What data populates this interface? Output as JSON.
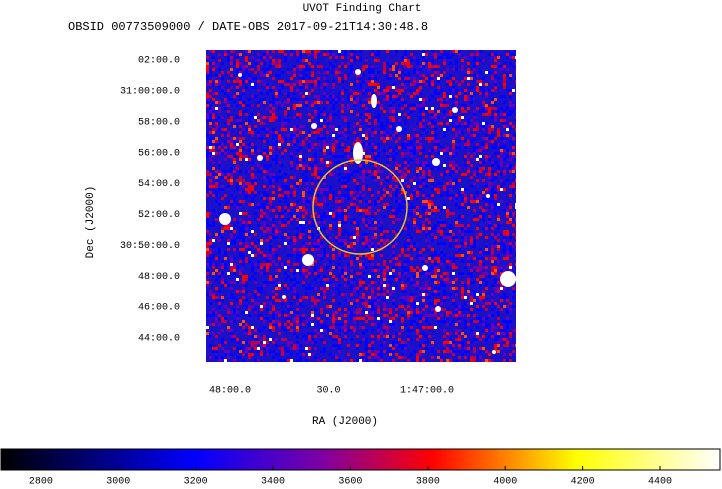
{
  "chart_data": {
    "type": "image",
    "title": "UVOT Finding Chart",
    "subtitle": "OBSID 00773509000 / DATE-OBS 2017-09-21T14:30:48.8",
    "x_label": "RA (J2000)",
    "y_label": "Dec (J2000)",
    "xlim": [
      27.0305,
      26.637
    ],
    "xticks": [
      {
        "value": 27.0,
        "label": "48:00.0"
      },
      {
        "value": 26.875,
        "label": "30.0"
      },
      {
        "value": 26.75,
        "label": "1:47:00.0"
      }
    ],
    "ylim": [
      30.7073,
      31.0442
    ],
    "yticks": [
      {
        "value": 31.0333,
        "label": "02:00.0"
      },
      {
        "value": 31.0,
        "label": "31:00:00.0"
      },
      {
        "value": 30.9667,
        "label": "58:00.0"
      },
      {
        "value": 30.9333,
        "label": "56:00.0"
      },
      {
        "value": 30.9,
        "label": "54:00.0"
      },
      {
        "value": 30.8667,
        "label": "52:00.0"
      },
      {
        "value": 30.8333,
        "label": "30:50:00.0"
      },
      {
        "value": 30.8,
        "label": "48:00.0"
      },
      {
        "value": 30.7667,
        "label": "46:00.0"
      },
      {
        "value": 30.7333,
        "label": "44:00.0"
      }
    ],
    "colorbar_lim": [
      2697,
      4555
    ],
    "colorbar_ticks": [
      2800,
      3000,
      3200,
      3400,
      3600,
      3800,
      4000,
      4200,
      4400
    ]
  }
}
